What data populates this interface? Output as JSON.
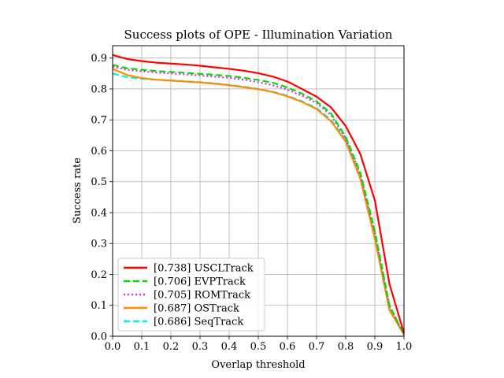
{
  "chart_data": {
    "type": "line",
    "title": "Success plots of OPE - Illumination Variation",
    "xlabel": "Overlap threshold",
    "ylabel": "Success rate",
    "xlim": [
      0,
      1
    ],
    "ylim": [
      0,
      0.94
    ],
    "xticks": [
      "0.0",
      "0.1",
      "0.2",
      "0.3",
      "0.4",
      "0.5",
      "0.6",
      "0.7",
      "0.8",
      "0.9",
      "1.0"
    ],
    "yticks": [
      "0.0",
      "0.1",
      "0.2",
      "0.3",
      "0.4",
      "0.5",
      "0.6",
      "0.7",
      "0.8",
      "0.9"
    ],
    "grid": true,
    "legend_position": "lower-left",
    "x": [
      0.0,
      0.05,
      0.1,
      0.15,
      0.2,
      0.25,
      0.3,
      0.35,
      0.4,
      0.45,
      0.5,
      0.55,
      0.6,
      0.65,
      0.7,
      0.75,
      0.8,
      0.85,
      0.9,
      0.95,
      1.0
    ],
    "series": [
      {
        "name": "[0.738] USCLTrack",
        "color": "#ff0000",
        "style": "solid",
        "values": [
          0.91,
          0.897,
          0.89,
          0.885,
          0.882,
          0.879,
          0.875,
          0.87,
          0.865,
          0.859,
          0.851,
          0.84,
          0.824,
          0.8,
          0.775,
          0.74,
          0.68,
          0.59,
          0.44,
          0.17,
          0.01
        ]
      },
      {
        "name": "[0.706] EVPTrack",
        "color": "#00dd00",
        "style": "dashed",
        "values": [
          0.878,
          0.867,
          0.862,
          0.858,
          0.855,
          0.852,
          0.849,
          0.846,
          0.842,
          0.836,
          0.829,
          0.82,
          0.805,
          0.785,
          0.76,
          0.72,
          0.645,
          0.53,
          0.34,
          0.1,
          0.005
        ]
      },
      {
        "name": "[0.705] ROMTrack",
        "color": "#ee22ee",
        "style": "dotted",
        "values": [
          0.872,
          0.862,
          0.857,
          0.853,
          0.85,
          0.847,
          0.844,
          0.84,
          0.836,
          0.83,
          0.822,
          0.812,
          0.798,
          0.778,
          0.755,
          0.715,
          0.64,
          0.525,
          0.335,
          0.1,
          0.005
        ]
      },
      {
        "name": "[0.687] OSTrack",
        "color": "#ff8c00",
        "style": "solid",
        "values": [
          0.865,
          0.845,
          0.835,
          0.83,
          0.827,
          0.824,
          0.821,
          0.817,
          0.812,
          0.806,
          0.799,
          0.79,
          0.776,
          0.758,
          0.735,
          0.695,
          0.63,
          0.51,
          0.315,
          0.085,
          0.005
        ]
      },
      {
        "name": "[0.686] SeqTrack",
        "color": "#00eeee",
        "style": "dashed",
        "values": [
          0.85,
          0.838,
          0.833,
          0.83,
          0.828,
          0.825,
          0.822,
          0.818,
          0.813,
          0.807,
          0.8,
          0.791,
          0.778,
          0.76,
          0.738,
          0.7,
          0.635,
          0.515,
          0.32,
          0.09,
          0.005
        ]
      }
    ]
  }
}
